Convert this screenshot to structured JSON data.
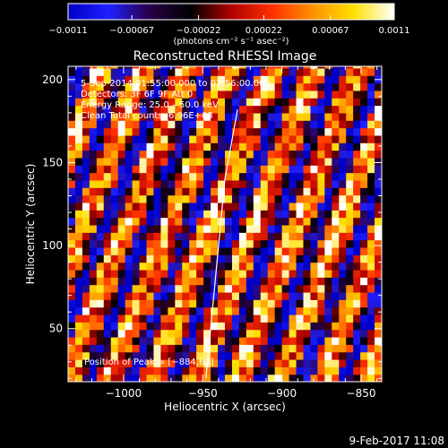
{
  "chart_data": {
    "type": "heatmap",
    "title": "Reconstructed RHESSI Image",
    "xlabel": "Heliocentric X (arcsec)",
    "ylabel": "Heliocentric Y (arcsec)",
    "xlim": [
      -1035,
      -837
    ],
    "ylim": [
      18,
      208
    ],
    "x_ticks": [
      -1000,
      -950,
      -900,
      -850
    ],
    "x_tick_labels": [
      "−1000",
      "−950",
      "−900",
      "−850"
    ],
    "y_ticks": [
      50,
      100,
      150,
      200
    ],
    "y_tick_labels": [
      "50",
      "100",
      "150",
      "200"
    ],
    "colorbar": {
      "min": -0.0011,
      "max": 0.0011,
      "ticks": [
        -0.0011,
        -0.00067,
        -0.00022,
        0.00022,
        0.00067,
        0.0011
      ],
      "tick_labels": [
        "−0.0011",
        "−0.00067",
        "−0.00022",
        "0.00022",
        "0.00067",
        "0.0011"
      ],
      "units": "(photons cm⁻² s⁻¹ asec⁻²)",
      "colormap": [
        "#0000c8",
        "#2020ff",
        "#2a0048",
        "#000000",
        "#b00000",
        "#ff3000",
        "#ff9000",
        "#ffe000",
        "#ffffff"
      ]
    },
    "annotations": [
      "5-Sep-2014 01:55:00.000 to 01:56:00.000",
      "Detectors: 3F 6F 9F Att 0",
      "Energy Range: 25.0 – 50.0 keV",
      "Clean     Total counts: 6.96E+03"
    ],
    "peak_label": "Position of Peak = [−884,63]",
    "limb_line": [
      [
        -948,
        20
      ],
      [
        -942,
        80
      ],
      [
        -936,
        140
      ],
      [
        -928,
        182
      ]
    ],
    "pattern": {
      "pixel_size_arcsec": 4.5,
      "stripe_period_arcsec": 25,
      "stripe_tilt_deg": 22
    }
  },
  "footer": {
    "date": "9-Feb-2017 11:08"
  }
}
